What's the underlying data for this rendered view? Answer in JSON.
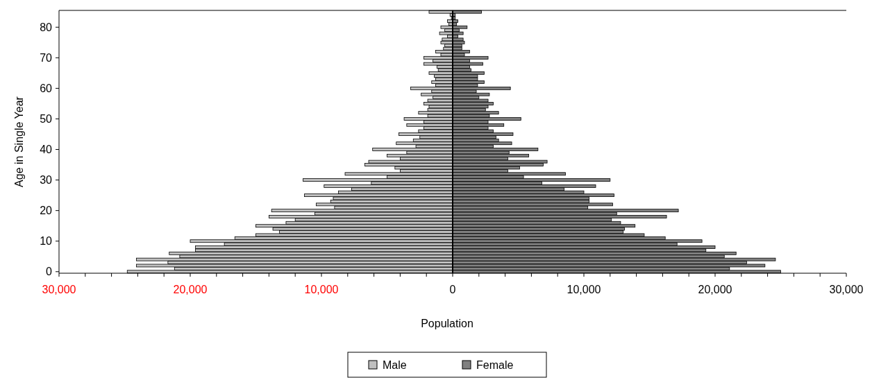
{
  "chart_data": {
    "type": "bar",
    "orientation": "horizontal",
    "xlabel": "Population",
    "ylabel": "Age in Single Year",
    "categories": [
      null,
      null,
      null,
      null,
      null,
      "80",
      null,
      null,
      null,
      null,
      null,
      null,
      null,
      null,
      null,
      "70",
      null,
      null,
      null,
      null,
      null,
      null,
      null,
      null,
      null,
      "60",
      null,
      null,
      null,
      null,
      null,
      null,
      null,
      null,
      null,
      "50",
      null,
      null,
      null,
      null,
      null,
      null,
      null,
      null,
      null,
      "40",
      null,
      null,
      null,
      null,
      null,
      null,
      null,
      null,
      null,
      "30",
      null,
      null,
      null,
      null,
      null,
      null,
      null,
      null,
      null,
      "20",
      null,
      null,
      null,
      null,
      null,
      null,
      null,
      null,
      null,
      "10",
      null,
      null,
      null,
      null,
      null,
      null,
      null,
      null,
      null,
      "0"
    ],
    "series": [
      {
        "name": "Male",
        "color": "#c0c0c0",
        "values": [
          -1800,
          -200,
          -100,
          -400,
          -300,
          -900,
          -600,
          -1000,
          -400,
          -800,
          -900,
          -600,
          -700,
          -1300,
          -900,
          -2200,
          -1500,
          -2200,
          -1200,
          -1100,
          -1800,
          -1400,
          -1300,
          -1600,
          -1300,
          -3200,
          -1600,
          -2400,
          -1500,
          -1900,
          -2200,
          -1800,
          -1900,
          -2600,
          -1900,
          -3700,
          -2200,
          -3500,
          -2200,
          -2600,
          -4100,
          -2500,
          -3000,
          -4300,
          -2800,
          -6100,
          -3500,
          -5000,
          -4000,
          -6400,
          -6700,
          -4400,
          -4000,
          -8200,
          -5000,
          -11400,
          -6200,
          -9800,
          -7700,
          -8700,
          -11300,
          -9100,
          -9300,
          -10400,
          -9000,
          -13800,
          -10500,
          -14000,
          -12000,
          -12700,
          -15000,
          -13700,
          -13200,
          -15000,
          -16600,
          -20000,
          -17400,
          -19600,
          -19600,
          -21600,
          -20800,
          -24100,
          -21700,
          -24100,
          -21200,
          -24800
        ]
      },
      {
        "name": "Female",
        "color": "#808080",
        "values": [
          2200,
          200,
          200,
          400,
          300,
          1100,
          500,
          800,
          400,
          800,
          900,
          700,
          700,
          1300,
          900,
          2700,
          1300,
          2300,
          1300,
          1400,
          2400,
          1900,
          1900,
          2400,
          1900,
          4400,
          1800,
          2800,
          2000,
          2700,
          3100,
          2700,
          2500,
          3500,
          2800,
          5200,
          2700,
          3900,
          2700,
          3100,
          4600,
          3300,
          3500,
          4500,
          3100,
          6500,
          4300,
          5800,
          4200,
          7200,
          6900,
          5100,
          4200,
          8600,
          5400,
          12000,
          6800,
          10900,
          8500,
          10000,
          12300,
          10400,
          10400,
          12200,
          10300,
          17200,
          12500,
          16300,
          12100,
          12800,
          13900,
          13100,
          13000,
          14600,
          16200,
          19000,
          17100,
          20000,
          19300,
          21600,
          20700,
          24600,
          22400,
          23800,
          21100,
          25000
        ]
      }
    ],
    "xlim": [
      -30000,
      30000
    ],
    "xticks": [
      {
        "value": -30000,
        "label": "30,000"
      },
      {
        "value": -28000,
        "label": null
      },
      {
        "value": -26000,
        "label": null
      },
      {
        "value": -24000,
        "label": null
      },
      {
        "value": -22000,
        "label": null
      },
      {
        "value": -20000,
        "label": "20,000"
      },
      {
        "value": -18000,
        "label": null
      },
      {
        "value": -16000,
        "label": null
      },
      {
        "value": -14000,
        "label": null
      },
      {
        "value": -12000,
        "label": null
      },
      {
        "value": -10000,
        "label": "10,000"
      },
      {
        "value": -8000,
        "label": null
      },
      {
        "value": -6000,
        "label": null
      },
      {
        "value": -4000,
        "label": null
      },
      {
        "value": -2000,
        "label": null
      },
      {
        "value": 0,
        "label": "0"
      },
      {
        "value": 2000,
        "label": null
      },
      {
        "value": 4000,
        "label": null
      },
      {
        "value": 6000,
        "label": null
      },
      {
        "value": 8000,
        "label": null
      },
      {
        "value": 10000,
        "label": "10,000"
      },
      {
        "value": 12000,
        "label": null
      },
      {
        "value": 14000,
        "label": null
      },
      {
        "value": 16000,
        "label": null
      },
      {
        "value": 18000,
        "label": null
      },
      {
        "value": 20000,
        "label": "20,000"
      },
      {
        "value": 22000,
        "label": null
      },
      {
        "value": 24000,
        "label": null
      },
      {
        "value": 26000,
        "label": null
      },
      {
        "value": 28000,
        "label": null
      },
      {
        "value": 30000,
        "label": "30,000"
      }
    ],
    "stacked": true,
    "legend": "bottom"
  }
}
